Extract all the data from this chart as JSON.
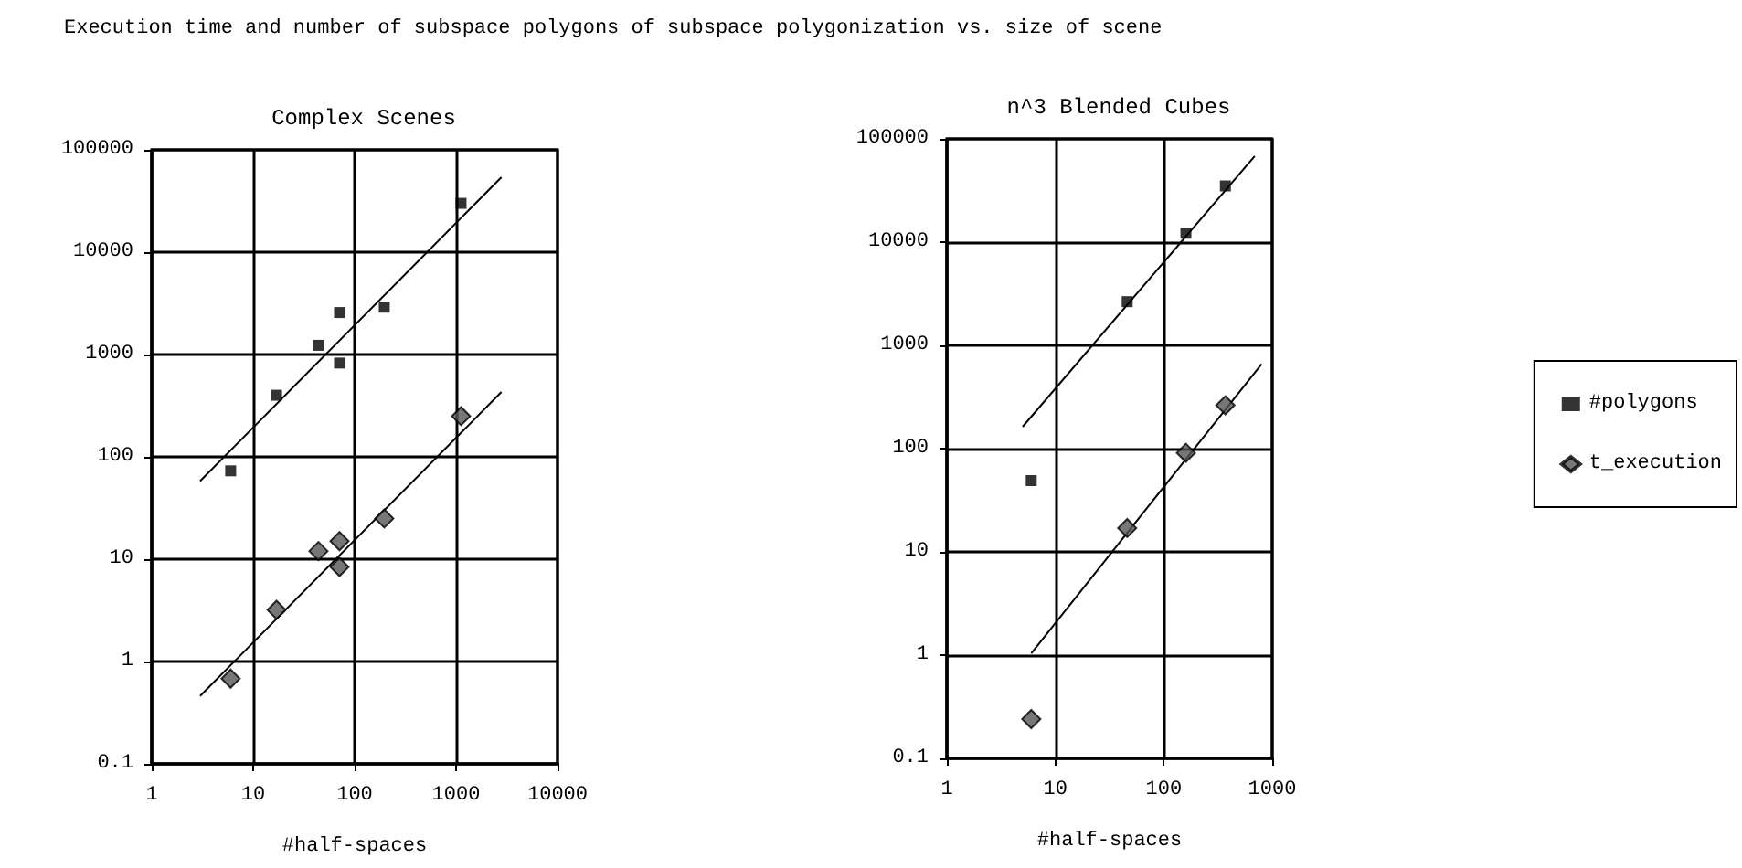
{
  "chart_data": [
    {
      "type": "scatter",
      "title": "Complex Scenes",
      "xlabel": "#half-spaces",
      "annotations": [
        "Execution time and number of subspace polygons of subspace polygonization vs. size of scene"
      ],
      "log": "xy",
      "grid": true,
      "xlim": [
        1,
        10000
      ],
      "xticks": [
        1,
        10,
        100,
        1000,
        10000
      ],
      "ylim": [
        0.1,
        100000
      ],
      "yticks": [
        0.1,
        1,
        10,
        100,
        1000,
        10000,
        100000
      ],
      "series": [
        {
          "type": "scatter",
          "marker": "square",
          "color": "#000000",
          "x": [
            6,
            17,
            44,
            71,
            71,
            196,
            1120
          ],
          "values": [
            73,
            400,
            1230,
            2570,
            825,
            2900,
            30000
          ]
        },
        {
          "type": "scatter",
          "marker": "diamond",
          "color": "#555555",
          "x": [
            6,
            17,
            44,
            71,
            71,
            196,
            1120
          ],
          "values": [
            0.68,
            3.2,
            12,
            15,
            8.4,
            25,
            250
          ]
        },
        {
          "type": "line",
          "marker": "none",
          "color": "#000000",
          "x": [
            3,
            2800
          ],
          "values": [
            58,
            54000
          ]
        },
        {
          "type": "line",
          "marker": "none",
          "color": "#000000",
          "x": [
            3,
            2800
          ],
          "values": [
            0.46,
            430
          ]
        }
      ]
    },
    {
      "type": "scatter",
      "title": "n^3 Blended Cubes",
      "xlabel": "#half-spaces",
      "log": "xy",
      "grid": true,
      "legend": "right",
      "xlim": [
        1,
        1000
      ],
      "xticks": [
        1,
        10,
        100,
        1000
      ],
      "ylim": [
        0.1,
        100000
      ],
      "yticks": [
        0.1,
        1,
        10,
        100,
        1000,
        10000,
        100000
      ],
      "series": [
        {
          "name": "#polygons",
          "type": "scatter",
          "marker": "square",
          "color": "#000000",
          "x": [
            6,
            46,
            160,
            370
          ],
          "values": [
            49,
            2650,
            12200,
            35000
          ]
        },
        {
          "name": "t_execution",
          "type": "scatter",
          "marker": "diamond",
          "color": "#555555",
          "x": [
            6,
            46,
            160,
            370
          ],
          "values": [
            0.24,
            17,
            91,
            263
          ]
        },
        {
          "type": "line",
          "marker": "none",
          "color": "#000000",
          "x": [
            5,
            690
          ],
          "values": [
            163,
            68000
          ]
        },
        {
          "type": "line",
          "marker": "none",
          "color": "#000000",
          "x": [
            6,
            800
          ],
          "values": [
            1.04,
            660
          ]
        }
      ]
    }
  ]
}
